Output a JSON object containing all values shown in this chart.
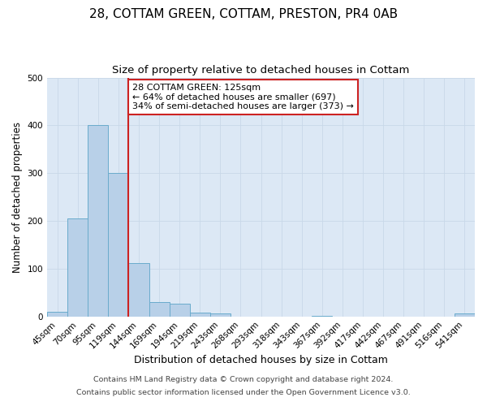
{
  "title": "28, COTTAM GREEN, COTTAM, PRESTON, PR4 0AB",
  "subtitle": "Size of property relative to detached houses in Cottam",
  "xlabel": "Distribution of detached houses by size in Cottam",
  "ylabel": "Number of detached properties",
  "bar_labels": [
    "45sqm",
    "70sqm",
    "95sqm",
    "119sqm",
    "144sqm",
    "169sqm",
    "194sqm",
    "219sqm",
    "243sqm",
    "268sqm",
    "293sqm",
    "318sqm",
    "343sqm",
    "367sqm",
    "392sqm",
    "417sqm",
    "442sqm",
    "467sqm",
    "491sqm",
    "516sqm",
    "541sqm"
  ],
  "bar_values": [
    10,
    205,
    400,
    300,
    112,
    30,
    27,
    8,
    7,
    0,
    0,
    0,
    0,
    2,
    0,
    0,
    0,
    0,
    0,
    0,
    7
  ],
  "bar_color": "#b8d0e8",
  "bar_edge_color": "#6aabcc",
  "plot_bg_color": "#dce8f5",
  "fig_bg_color": "#ffffff",
  "grid_color": "#c8d8e8",
  "vline_x": 3.5,
  "vline_color": "#cc2222",
  "annotation_text": "28 COTTAM GREEN: 125sqm\n← 64% of detached houses are smaller (697)\n34% of semi-detached houses are larger (373) →",
  "annotation_box_color": "#ffffff",
  "annotation_box_edge": "#cc2222",
  "footer1": "Contains HM Land Registry data © Crown copyright and database right 2024.",
  "footer2": "Contains public sector information licensed under the Open Government Licence v3.0.",
  "ylim": [
    0,
    500
  ],
  "title_fontsize": 11,
  "subtitle_fontsize": 9.5,
  "xlabel_fontsize": 9,
  "ylabel_fontsize": 8.5,
  "tick_fontsize": 7.5,
  "footer_fontsize": 6.8,
  "annotation_fontsize": 8
}
